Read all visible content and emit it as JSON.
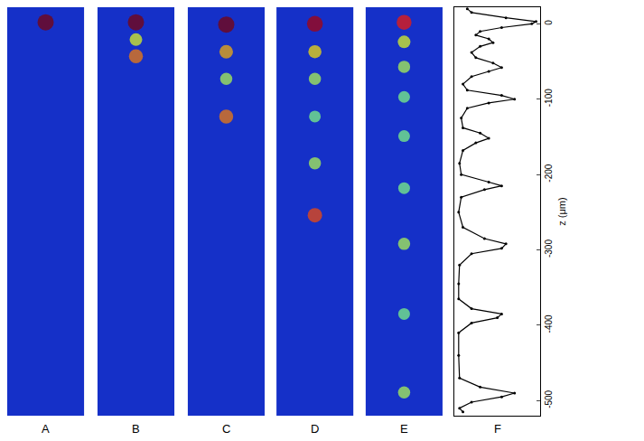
{
  "chart_data": [
    {
      "type": "spots",
      "label": "A",
      "z": [
        2
      ],
      "intensity": [
        1.0
      ],
      "intensity_range": [
        0,
        1
      ],
      "ylim": [
        -520,
        22
      ],
      "tick_labels": false
    },
    {
      "type": "spots",
      "label": "B",
      "z": [
        2,
        -21,
        -43
      ],
      "intensity": [
        1.0,
        0.6,
        0.75
      ],
      "intensity_range": [
        0,
        1
      ],
      "ylim": [
        -520,
        22
      ],
      "tick_labels": false
    },
    {
      "type": "spots",
      "label": "C",
      "z": [
        -1,
        -37,
        -73,
        -123
      ],
      "intensity": [
        1.0,
        0.7,
        0.55,
        0.75
      ],
      "intensity_range": [
        0,
        1
      ],
      "ylim": [
        -520,
        22
      ],
      "tick_labels": false
    },
    {
      "type": "spots",
      "label": "D",
      "z": [
        0,
        -37,
        -73,
        -123,
        -185,
        -254
      ],
      "intensity": [
        0.95,
        0.65,
        0.55,
        0.5,
        0.55,
        0.8
      ],
      "intensity_range": [
        0,
        1
      ],
      "ylim": [
        -520,
        22
      ],
      "tick_labels": false
    },
    {
      "type": "spots",
      "label": "E",
      "z": [
        2,
        -24,
        -57,
        -97,
        -149,
        -218,
        -292,
        -385,
        -489
      ],
      "intensity": [
        0.85,
        0.6,
        0.55,
        0.5,
        0.5,
        0.5,
        0.55,
        0.5,
        0.55
      ],
      "intensity_range": [
        0,
        1
      ],
      "ylim": [
        -520,
        22
      ],
      "tick_labels": false
    },
    {
      "type": "line",
      "label": "F",
      "ylabel": "z (μm)",
      "color": "#000000",
      "marker": "circle",
      "y": [
        20,
        15,
        8,
        3,
        0,
        -5,
        -10,
        -15,
        -20,
        -25,
        -30,
        -38,
        -45,
        -52,
        -58,
        -63,
        -70,
        -80,
        -88,
        -95,
        -100,
        -105,
        -112,
        -125,
        -138,
        -145,
        -152,
        -158,
        -168,
        -185,
        -200,
        -210,
        -215,
        -220,
        -230,
        -250,
        -270,
        -285,
        -292,
        -298,
        -305,
        -320,
        -345,
        -365,
        -378,
        -385,
        -390,
        -397,
        -410,
        -440,
        -470,
        -482,
        -490,
        -495,
        -502,
        -510,
        -515
      ],
      "x": [
        0.15,
        0.2,
        0.6,
        0.95,
        0.9,
        0.55,
        0.3,
        0.25,
        0.4,
        0.45,
        0.3,
        0.2,
        0.25,
        0.45,
        0.55,
        0.4,
        0.2,
        0.1,
        0.15,
        0.55,
        0.7,
        0.4,
        0.15,
        0.08,
        0.1,
        0.3,
        0.4,
        0.25,
        0.1,
        0.06,
        0.08,
        0.4,
        0.55,
        0.35,
        0.08,
        0.05,
        0.1,
        0.35,
        0.6,
        0.55,
        0.2,
        0.06,
        0.05,
        0.05,
        0.2,
        0.55,
        0.5,
        0.2,
        0.05,
        0.05,
        0.06,
        0.3,
        0.7,
        0.55,
        0.2,
        0.06,
        0.1
      ],
      "xlim": [
        0,
        1
      ],
      "ylim": [
        -520,
        22
      ],
      "yticks": [
        0,
        -100,
        -200,
        -300,
        -400,
        -500
      ],
      "tick_labels": "y"
    }
  ]
}
